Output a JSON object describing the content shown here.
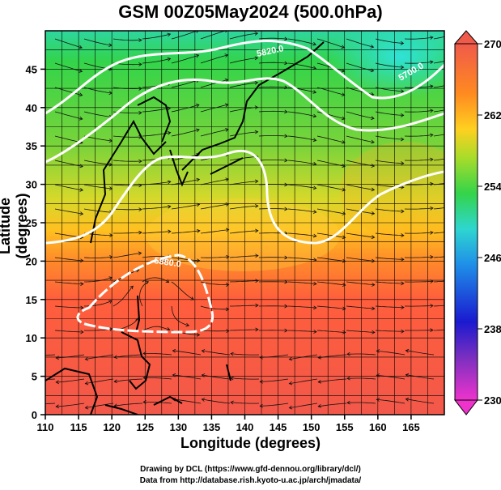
{
  "title": "GSM 00Z05May2024 (500.0hPa)",
  "axes": {
    "xlabel": "Longitude (degrees)",
    "ylabel": "Latitude  (degrees)",
    "x_ticks": [
      "110",
      "115",
      "120",
      "125",
      "130",
      "135",
      "140",
      "145",
      "150",
      "155",
      "160",
      "165"
    ],
    "y_ticks": [
      "0",
      "5",
      "10",
      "15",
      "20",
      "25",
      "30",
      "35",
      "40",
      "45"
    ],
    "xlim": [
      110,
      170
    ],
    "ylim": [
      0,
      50
    ]
  },
  "colorbar": {
    "ticks": [
      "230",
      "238",
      "246",
      "254",
      "262",
      "270"
    ],
    "range": [
      230,
      270
    ],
    "colors": [
      "#ee33cc",
      "#5a2fc0",
      "#1a2bcf",
      "#1f8fd8",
      "#2ed6d0",
      "#34d44a",
      "#c8e02a",
      "#ffd020",
      "#ff8a20",
      "#ff5a3a",
      "#f05a4a"
    ]
  },
  "contour_labels": [
    "5820.0",
    "5880.0",
    "5700.0"
  ],
  "credits": {
    "line1": "Drawing by DCL (https://www.gfd-dennou.org/library/dcl/)",
    "line2": "Data from http://database.rish.kyoto-u.ac.jp/arch/jmadata/"
  },
  "chart_data": {
    "type": "heatmap",
    "title": "GSM 00Z05May2024 (500.0hPa)",
    "xlabel": "Longitude (degrees)",
    "ylabel": "Latitude  (degrees)",
    "xlim": [
      110,
      170
    ],
    "ylim": [
      0,
      50
    ],
    "colorbar_range": [
      230,
      270
    ],
    "colorbar_ticks": [
      230,
      238,
      246,
      254,
      262,
      270
    ],
    "grid": true,
    "overlays": [
      "streamlines",
      "coastlines",
      "white geopotential height contours"
    ]
  }
}
